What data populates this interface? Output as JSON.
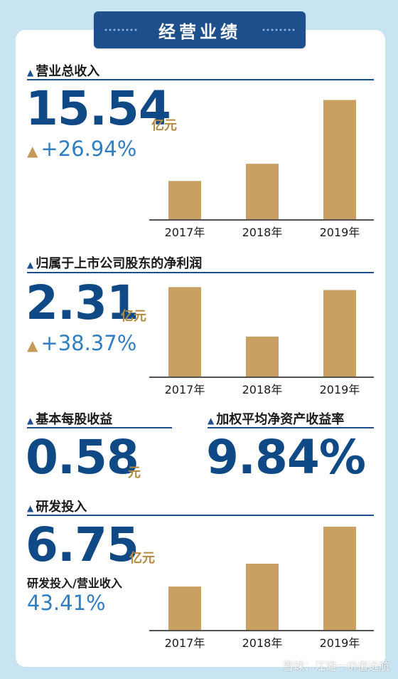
{
  "header": {
    "title": "经营业绩"
  },
  "revenue": {
    "title": "营业总收入",
    "value": "15.54",
    "unit": "亿元",
    "growth": "+26.94%"
  },
  "net_profit": {
    "title": "归属于上市公司股东的净利润",
    "value": "2.31",
    "unit": "亿元",
    "growth": "+38.37%"
  },
  "eps": {
    "title": "基本每股收益",
    "value": "0.58",
    "unit": "元"
  },
  "roe": {
    "title": "加权平均净资产收益率",
    "value": "9.84%"
  },
  "rnd": {
    "title": "研发投入",
    "value": "6.75",
    "unit": "亿元",
    "ratio_label": "研发投入/营业收入",
    "ratio_value": "43.41%"
  },
  "watermark": "雪球：江滩一价值远航",
  "colors": {
    "bar": "#c7a062",
    "primary": "#1d4f8c",
    "growth": "#2f7fc2",
    "unit": "#b58a3f",
    "background": "#c8e3f1"
  },
  "chart_data": [
    {
      "type": "bar",
      "title": "营业总收入",
      "categories": [
        "2017年",
        "2018年",
        "2019年"
      ],
      "values": [
        11.3,
        12.2,
        15.54
      ],
      "ylim": [
        9.3,
        16.6
      ]
    },
    {
      "type": "bar",
      "title": "归属于上市公司股东的净利润",
      "categories": [
        "2017年",
        "2018年",
        "2019年"
      ],
      "values": [
        2.35,
        1.67,
        2.31
      ],
      "ylim": [
        1.12,
        2.55
      ]
    },
    {
      "type": "bar",
      "title": "研发投入",
      "categories": [
        "2017年",
        "2018年",
        "2019年"
      ],
      "values": [
        4.4,
        5.3,
        6.75
      ],
      "ylim": [
        2.7,
        7.2
      ]
    }
  ]
}
